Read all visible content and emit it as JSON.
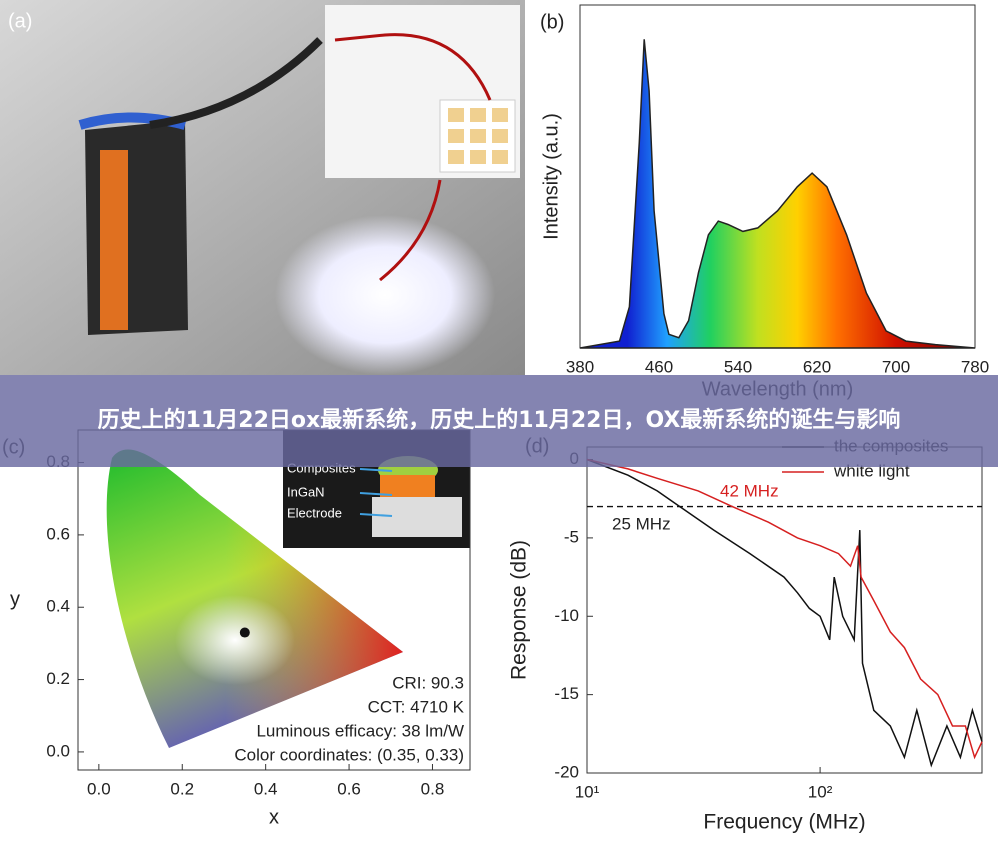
{
  "banner": {
    "title": "历史上的11月22日ox最新系统，历史上的11月22日，OX最新系统的诞生与影响"
  },
  "photo": {
    "label": "(a)"
  },
  "chart_data": [
    {
      "type": "area",
      "label": "(b)",
      "y_label": "Intensity (a.u.)",
      "x_label": "Wavelength (nm)",
      "x": [
        380,
        420,
        430,
        440,
        445,
        450,
        455,
        465,
        470,
        480,
        490,
        500,
        510,
        520,
        530,
        545,
        560,
        580,
        600,
        615,
        630,
        650,
        670,
        690,
        710,
        740,
        780
      ],
      "values": [
        0,
        0.02,
        0.12,
        0.6,
        0.9,
        0.75,
        0.4,
        0.1,
        0.04,
        0.03,
        0.08,
        0.22,
        0.33,
        0.37,
        0.36,
        0.34,
        0.35,
        0.4,
        0.47,
        0.51,
        0.47,
        0.33,
        0.16,
        0.05,
        0.02,
        0.01,
        0
      ],
      "xlim": [
        380,
        780
      ],
      "xticks": [
        380,
        460,
        540,
        620,
        700,
        780
      ],
      "ylim": [
        0,
        1
      ]
    },
    {
      "type": "scatter",
      "label": "(c)",
      "x_label": "x",
      "y_label": "y",
      "x": [
        0.35
      ],
      "values": [
        0.33
      ],
      "xlim": [
        -0.05,
        0.89
      ],
      "ylim": [
        -0.05,
        0.89
      ],
      "xticks": [
        {
          "value": 0,
          "label": "0.0"
        },
        {
          "value": 0.2,
          "label": "0.2"
        },
        {
          "value": 0.4,
          "label": "0.4"
        },
        {
          "value": 0.6,
          "label": "0.6"
        },
        {
          "value": 0.8,
          "label": "0.8"
        }
      ],
      "yticks": [
        {
          "value": 0,
          "label": "0.0"
        },
        {
          "value": 0.2,
          "label": "0.2"
        },
        {
          "value": 0.4,
          "label": "0.4"
        },
        {
          "value": 0.6,
          "label": "0.6"
        },
        {
          "value": 0.8,
          "label": "0.8"
        }
      ],
      "annotations": [
        "CRI: 90.3",
        "CCT: 4710 K",
        "Luminous efficacy: 38 lm/W",
        "Color coordinates: (0.35, 0.33)"
      ],
      "inset_labels": [
        "Composites",
        "InGaN",
        "Electrode"
      ]
    },
    {
      "type": "line",
      "label": "(d)",
      "x_label": "Frequency (MHz)",
      "y_label": "Response (dB)",
      "log_x": true,
      "xlim": [
        10,
        495
      ],
      "ylim": [
        -20,
        0.8
      ],
      "xticks": [
        {
          "value": 10,
          "label": "10¹"
        },
        {
          "value": 100,
          "label": "10²"
        }
      ],
      "yticks": [
        0,
        -5,
        -10,
        -15,
        -20
      ],
      "reference_line": -3,
      "legend": "upper right",
      "annotations": [
        "42 MHz",
        "25 MHz"
      ],
      "series": [
        {
          "name": "the composites",
          "color": "#111111",
          "x": [
            10,
            15,
            20,
            25,
            35,
            50,
            70,
            80,
            90,
            100,
            110,
            115,
            125,
            140,
            148,
            152,
            170,
            200,
            230,
            260,
            300,
            350,
            400,
            450,
            495
          ],
          "values": [
            0,
            -1,
            -2,
            -3,
            -4.5,
            -6,
            -7.5,
            -8.5,
            -9.5,
            -10,
            -11.5,
            -7.5,
            -10,
            -11.5,
            -4.5,
            -13,
            -16,
            -17,
            -19,
            -16,
            -19.5,
            -17,
            -19,
            -16,
            -18
          ]
        },
        {
          "name": "white light",
          "color": "#d62020",
          "x": [
            10,
            15,
            20,
            30,
            42,
            60,
            80,
            100,
            120,
            135,
            145,
            150,
            170,
            200,
            230,
            270,
            320,
            370,
            420,
            460,
            495
          ],
          "values": [
            0,
            -0.6,
            -1.2,
            -2,
            -3,
            -4,
            -5,
            -5.5,
            -6,
            -6.8,
            -5.5,
            -7.5,
            -9,
            -11,
            -12,
            -14,
            -15,
            -17,
            -17,
            -19,
            -18
          ]
        }
      ]
    }
  ]
}
